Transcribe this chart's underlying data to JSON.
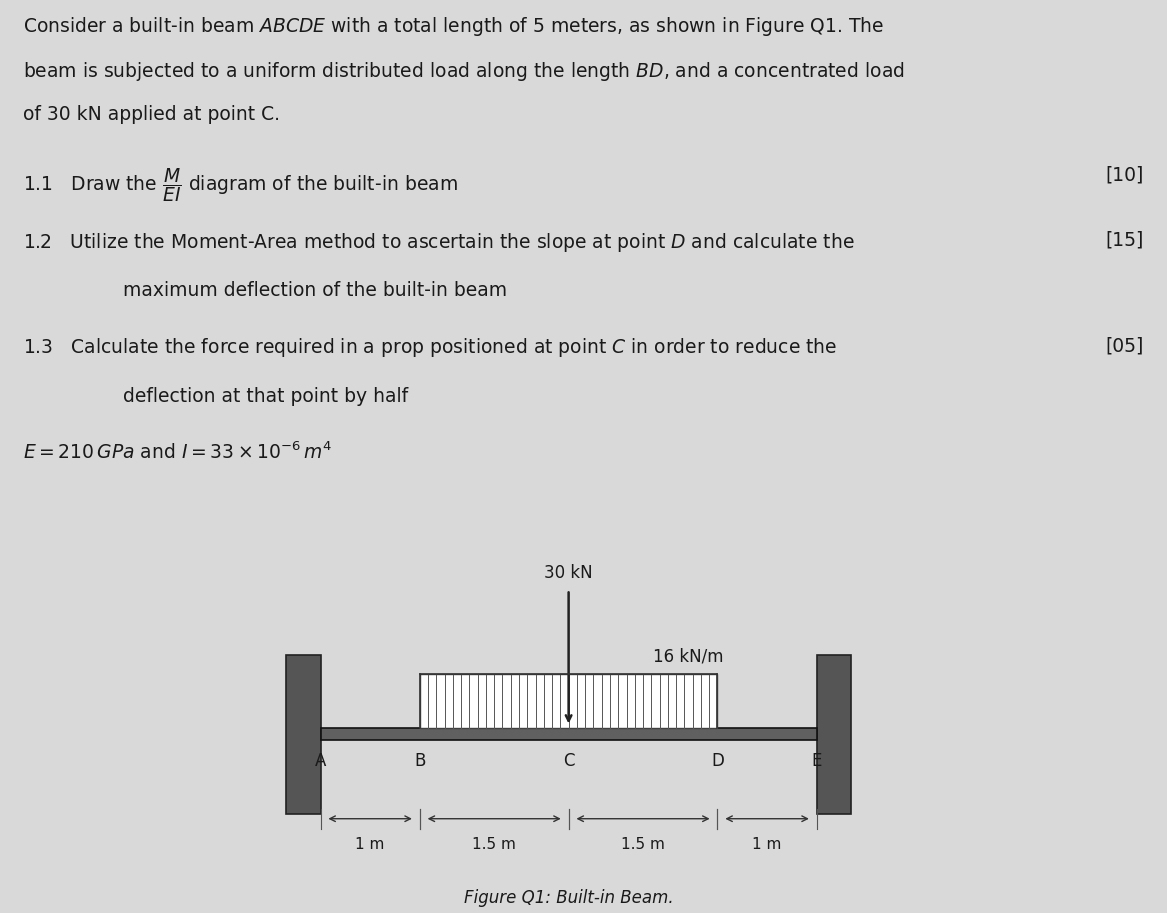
{
  "background_color": "#d9d9d9",
  "text_color": "#1a1a1a",
  "title_text": "Consider a built-in beam $ABCDE$ with a total length of 5 meters, as shown in Figure Q1. The\nbeam is subjected to a uniform distributed load along the length $BD$, and a concentrated load\nof 30 kN applied at point C.",
  "item_1_1": "1.1   Draw the $\\dfrac{M}{EI}$ diagram of the built-in beam",
  "item_1_1_mark": "[10]",
  "item_1_2_line1": "1.2   Utilize the Moment-Area method to ascertain the slope at point $D$ and calculate the",
  "item_1_2_line2": "maximum deflection of the built-in beam",
  "item_1_2_mark": "[15]",
  "item_1_3_line1": "1.3   Calculate the force required in a prop positioned at point $C$ in order to reduce the",
  "item_1_3_line2": "deflection at that point by half",
  "item_1_3_mark": "[05]",
  "equation": "$E = 210\\,GPa$ and $I = 33 \\times 10^{-6}\\,m^4$",
  "concentrated_load_label": "30 kN",
  "udl_label": "16 kN/m",
  "figure_caption": "Figure Q1: Built-in Beam.",
  "points": [
    "A",
    "B",
    "C",
    "D",
    "E"
  ],
  "distances": [
    "1 m",
    "1.5 m",
    "1.5 m",
    "1 m"
  ],
  "beam_color": "#404040",
  "wall_color": "#555555",
  "udl_color": "#888888",
  "udl_fill": "#cccccc"
}
